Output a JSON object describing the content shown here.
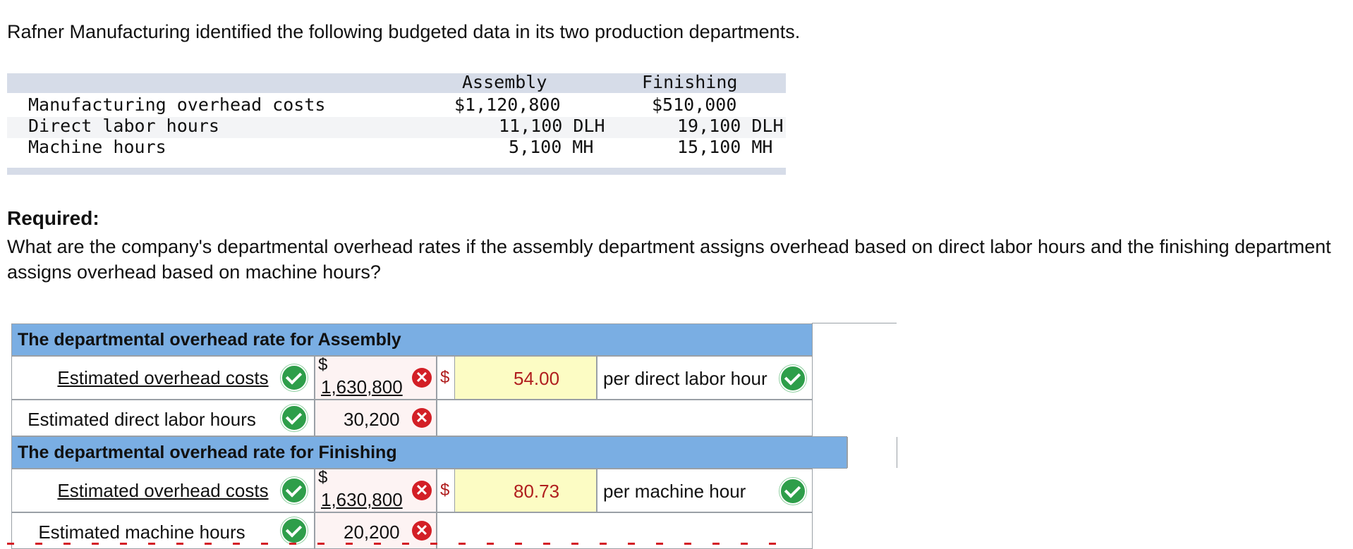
{
  "intro": "Rafner Manufacturing identified the following budgeted data in its two production departments.",
  "budget_table": {
    "headers": {
      "assembly": "Assembly",
      "finishing": "Finishing"
    },
    "rows": [
      {
        "label": "Manufacturing overhead costs",
        "assembly": "$1,120,800",
        "finishing": "$510,000"
      },
      {
        "label": "Direct labor hours",
        "assembly": "11,100 DLH",
        "finishing": "19,100 DLH"
      },
      {
        "label": "Machine hours",
        "assembly": "5,100 MH",
        "finishing": "15,100 MH"
      }
    ]
  },
  "required": {
    "heading": "Required:",
    "question": "What are the company's departmental overhead rates if the assembly department assigns overhead based on direct labor hours and the finishing department assigns overhead based on machine hours?"
  },
  "answer": {
    "assembly": {
      "title": "The departmental overhead rate for Assembly",
      "numerator_label": "Estimated overhead costs",
      "numerator_currency": "$",
      "numerator_value": "1,630,800",
      "denominator_label": "Estimated direct labor hours",
      "denominator_value": "30,200",
      "result_currency": "$",
      "result_value": "54.00",
      "unit_label": "per direct labor hour"
    },
    "finishing": {
      "title": "The departmental overhead rate for Finishing",
      "numerator_label": "Estimated overhead costs",
      "numerator_currency": "$",
      "numerator_value": "1,630,800",
      "denominator_label": "Estimated machine hours",
      "denominator_value": "20,200",
      "result_currency": "$",
      "result_value": "80.73",
      "unit_label": "per machine hour"
    },
    "icons": {
      "correct": "check-circle-icon",
      "incorrect": "x-circle-icon"
    },
    "colors": {
      "header": "#7aaee3",
      "input": "#fcfcc4",
      "correct": "#2e9e4a",
      "incorrect": "#d31f26"
    }
  }
}
